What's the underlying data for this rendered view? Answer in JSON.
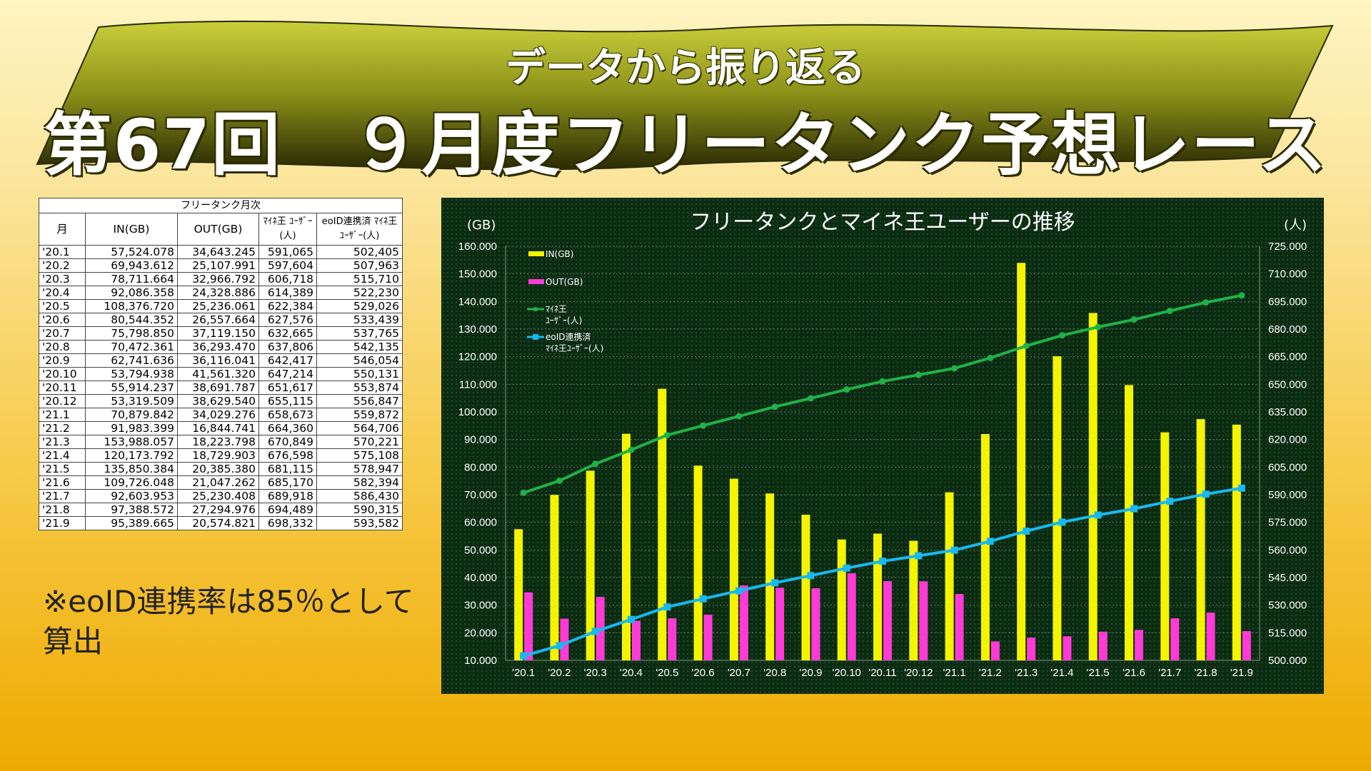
{
  "banner": {
    "subtitle": "データから振り返る",
    "title": "第67回　９月度フリータンク予想レース"
  },
  "table": {
    "caption": "フリータンク月次",
    "headers": [
      "月",
      "IN(GB)",
      "OUT(GB)",
      "ﾏｲﾈ王 ﾕｰｻﾞｰ(人)",
      "eoID連携済 ﾏｲﾈ王ﾕｰｻﾞｰ(人)"
    ],
    "rows": [
      [
        "'20.1",
        "57,524.078",
        "34,643.245",
        "591,065",
        "502,405"
      ],
      [
        "'20.2",
        "69,943.612",
        "25,107.991",
        "597,604",
        "507,963"
      ],
      [
        "'20.3",
        "78,711.664",
        "32,966.792",
        "606,718",
        "515,710"
      ],
      [
        "'20.4",
        "92,086.358",
        "24,328.886",
        "614,389",
        "522,230"
      ],
      [
        "'20.5",
        "108,376.720",
        "25,236.061",
        "622,384",
        "529,026"
      ],
      [
        "'20.6",
        "80,544.352",
        "26,557.664",
        "627,576",
        "533,439"
      ],
      [
        "'20.7",
        "75,798.850",
        "37,119.150",
        "632,665",
        "537,765"
      ],
      [
        "'20.8",
        "70,472.361",
        "36,293.470",
        "637,806",
        "542,135"
      ],
      [
        "'20.9",
        "62,741.636",
        "36,116.041",
        "642,417",
        "546,054"
      ],
      [
        "'20.10",
        "53,794.938",
        "41,561.320",
        "647,214",
        "550,131"
      ],
      [
        "'20.11",
        "55,914.237",
        "38,691.787",
        "651,617",
        "553,874"
      ],
      [
        "'20.12",
        "53,319.509",
        "38,629.540",
        "655,115",
        "556,847"
      ],
      [
        "'21.1",
        "70,879.842",
        "34,029.276",
        "658,673",
        "559,872"
      ],
      [
        "'21.2",
        "91,983.399",
        "16,844.741",
        "664,360",
        "564,706"
      ],
      [
        "'21.3",
        "153,988.057",
        "18,223.798",
        "670,849",
        "570,221"
      ],
      [
        "'21.4",
        "120,173.792",
        "18,729.903",
        "676,598",
        "575,108"
      ],
      [
        "'21.5",
        "135,850.384",
        "20,385.380",
        "681,115",
        "578,947"
      ],
      [
        "'21.6",
        "109,726.048",
        "21,047.262",
        "685,170",
        "582,394"
      ],
      [
        "'21.7",
        "92,603.953",
        "25,230.408",
        "689,918",
        "586,430"
      ],
      [
        "'21.8",
        "97,388.572",
        "27,294.976",
        "694,489",
        "590,315"
      ],
      [
        "'21.9",
        "95,389.665",
        "20,574.821",
        "698,332",
        "593,582"
      ]
    ]
  },
  "note": {
    "line1": "※eoID連携率は85％として",
    "line2": "算出"
  },
  "colors": {
    "in": "#f4f400",
    "out": "#ff3ad6",
    "maine": "#22b04a",
    "eoid": "#19b8f0",
    "grid": "#8a9a8a"
  },
  "chart_data": {
    "type": "bar",
    "title": "フリータンクとマイネ王ユーザーの推移",
    "left_unit": "(GB)",
    "right_unit": "(人)",
    "categories": [
      "'20.1",
      "'20.2",
      "'20.3",
      "'20.4",
      "'20.5",
      "'20.6",
      "'20.7",
      "'20.8",
      "'20.9",
      "'20.10",
      "'20.11",
      "'20.12",
      "'21.1",
      "'21.2",
      "'21.3",
      "'21.4",
      "'21.5",
      "'21.6",
      "'21.7",
      "'21.8",
      "'21.9"
    ],
    "ylim_left": [
      10000,
      160000
    ],
    "ylim_right": [
      500000,
      725000
    ],
    "yticks_left": [
      "10.000",
      "20.000",
      "30.000",
      "40.000",
      "50.000",
      "60.000",
      "70.000",
      "80.000",
      "90.000",
      "100.000",
      "110.000",
      "120.000",
      "130.000",
      "140.000",
      "150.000",
      "160.000"
    ],
    "yticks_right": [
      "500.000",
      "515.000",
      "530.000",
      "545.000",
      "560.000",
      "575.000",
      "590.000",
      "605.000",
      "620.000",
      "635.000",
      "650.000",
      "665.000",
      "680.000",
      "695.000",
      "710.000",
      "725.000"
    ],
    "series": [
      {
        "name": "IN(GB)",
        "kind": "bar",
        "axis": "left",
        "values": [
          57524,
          69944,
          78712,
          92086,
          108377,
          80544,
          75799,
          70472,
          62742,
          53795,
          55914,
          53320,
          70880,
          91983,
          153988,
          120174,
          135850,
          109726,
          92604,
          97389,
          95390
        ]
      },
      {
        "name": "OUT(GB)",
        "kind": "bar",
        "axis": "left",
        "values": [
          34643,
          25108,
          32967,
          24329,
          25236,
          26558,
          37119,
          36293,
          36116,
          41561,
          38692,
          38630,
          34029,
          16845,
          18224,
          18730,
          20385,
          21047,
          25230,
          27295,
          20575
        ]
      },
      {
        "name": "ﾏｲﾈ王 ﾕｰｻﾞｰ(人)",
        "kind": "line",
        "axis": "right",
        "values": [
          591065,
          597604,
          606718,
          614389,
          622384,
          627576,
          632665,
          637806,
          642417,
          647214,
          651617,
          655115,
          658673,
          664360,
          670849,
          676598,
          681115,
          685170,
          689918,
          694489,
          698332
        ]
      },
      {
        "name": "eoID連携済 ﾏｲﾈ王ﾕｰｻﾞｰ(人)",
        "kind": "line",
        "axis": "right",
        "values": [
          502405,
          507963,
          515710,
          522230,
          529026,
          533439,
          537765,
          542135,
          546054,
          550131,
          553874,
          556847,
          559872,
          564706,
          570221,
          575108,
          578947,
          582394,
          586430,
          590315,
          593582
        ]
      }
    ],
    "legend": {
      "in": "IN(GB)",
      "out": "OUT(GB)",
      "maine_l1": "ﾏｲﾈ王",
      "maine_l2": "ﾕｰｻﾞｰ(人)",
      "eoid_l1": "eoID連携済",
      "eoid_l2": "ﾏｲﾈ王ﾕｰｻﾞｰ(人)"
    },
    "legend_position": "top-left"
  }
}
